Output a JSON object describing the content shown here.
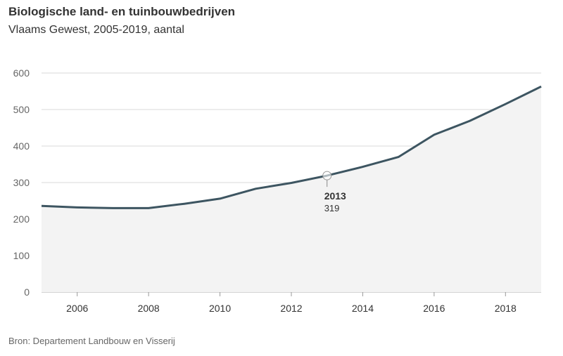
{
  "chart_data": {
    "type": "area",
    "title": "Biologische land- en tuinbouwbedrijven",
    "subtitle": "Vlaams Gewest, 2005-2019, aantal",
    "source": "Bron: Departement Landbouw en Visserij",
    "x": [
      2005,
      2006,
      2007,
      2008,
      2009,
      2010,
      2011,
      2012,
      2013,
      2014,
      2015,
      2016,
      2017,
      2018,
      2019
    ],
    "values": [
      236,
      232,
      230,
      230,
      242,
      256,
      283,
      299,
      319,
      343,
      370,
      431,
      469,
      515,
      563
    ],
    "xlim": [
      2005,
      2019
    ],
    "ylim": [
      0,
      600
    ],
    "x_ticks": [
      "2006",
      "2008",
      "2010",
      "2012",
      "2014",
      "2016",
      "2018"
    ],
    "y_ticks": [
      "0",
      "100",
      "200",
      "300",
      "400",
      "500",
      "600"
    ],
    "grid": true,
    "annotation": {
      "x": "2013",
      "value": "319"
    },
    "colors": {
      "line": "#3d5561",
      "area": "#f3f3f3",
      "grid": "#d9d9d9"
    }
  }
}
